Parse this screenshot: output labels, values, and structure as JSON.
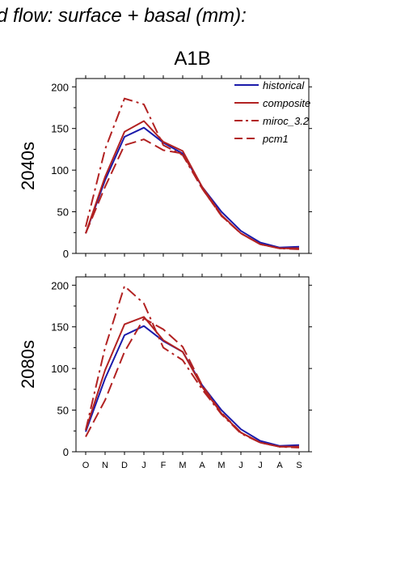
{
  "header_title": "d flow: surface + basal (mm):",
  "scenario_title": "A1B",
  "colors": {
    "historical": "#1a1aaa",
    "projection": "#b22222",
    "frame": "#000000"
  },
  "chart_data": [
    {
      "type": "line",
      "panel_label": "2040s",
      "categories": [
        "O",
        "N",
        "D",
        "J",
        "F",
        "M",
        "A",
        "M",
        "J",
        "J",
        "A",
        "S"
      ],
      "ylim": [
        0,
        210
      ],
      "yticks": [
        0,
        50,
        100,
        150,
        200
      ],
      "grid": false,
      "legend_position": "top-right",
      "series": [
        {
          "name": "historical",
          "color": "#1a1aaa",
          "dash": "solid",
          "values": [
            24,
            88,
            140,
            151,
            133,
            120,
            80,
            50,
            27,
            13,
            7,
            8
          ]
        },
        {
          "name": "composite",
          "color": "#b22222",
          "dash": "solid",
          "values": [
            24,
            92,
            146,
            159,
            134,
            123,
            80,
            46,
            24,
            11,
            6,
            6
          ]
        },
        {
          "name": "miroc_3.2",
          "color": "#b22222",
          "dash": "dashdot",
          "values": [
            32,
            125,
            186,
            179,
            130,
            118,
            78,
            45,
            24,
            11,
            6,
            5
          ]
        },
        {
          "name": "pcm1",
          "color": "#b22222",
          "dash": "dashed",
          "values": [
            24,
            80,
            130,
            137,
            124,
            120,
            78,
            45,
            24,
            11,
            6,
            6
          ]
        }
      ]
    },
    {
      "type": "line",
      "panel_label": "2080s",
      "categories": [
        "O",
        "N",
        "D",
        "J",
        "F",
        "M",
        "A",
        "M",
        "J",
        "J",
        "A",
        "S"
      ],
      "ylim": [
        0,
        210
      ],
      "yticks": [
        0,
        50,
        100,
        150,
        200
      ],
      "grid": false,
      "series": [
        {
          "name": "historical",
          "color": "#1a1aaa",
          "dash": "solid",
          "values": [
            24,
            88,
            140,
            151,
            133,
            120,
            80,
            50,
            27,
            13,
            7,
            8
          ]
        },
        {
          "name": "composite",
          "color": "#b22222",
          "dash": "solid",
          "values": [
            26,
            98,
            153,
            162,
            134,
            120,
            78,
            46,
            23,
            11,
            6,
            6
          ]
        },
        {
          "name": "miroc_3.2",
          "color": "#b22222",
          "dash": "dashdot",
          "values": [
            26,
            125,
            199,
            178,
            125,
            110,
            75,
            45,
            22,
            11,
            6,
            5
          ]
        },
        {
          "name": "pcm1",
          "color": "#b22222",
          "dash": "dashed",
          "values": [
            18,
            62,
            120,
            160,
            147,
            126,
            80,
            47,
            23,
            11,
            6,
            6
          ]
        }
      ]
    }
  ]
}
